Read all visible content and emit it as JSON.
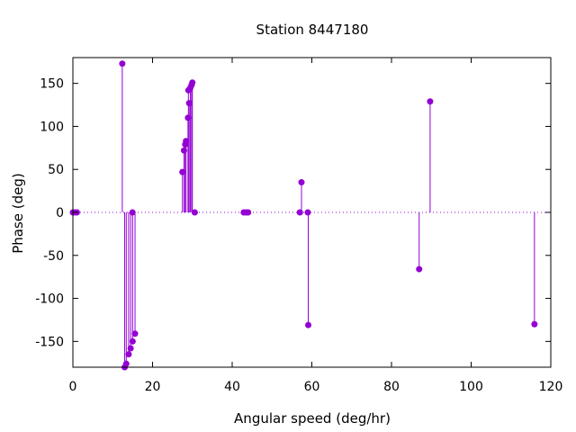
{
  "chart_data": {
    "type": "scatter",
    "style": "impulses-with-points",
    "title": "Station 8447180",
    "xlabel": "Angular speed (deg/hr)",
    "ylabel": "Phase (deg)",
    "xlim": [
      0,
      120
    ],
    "ylim": [
      -180,
      180
    ],
    "xticks": [
      0,
      20,
      40,
      60,
      80,
      100,
      120
    ],
    "yticks": [
      -150,
      -100,
      -50,
      0,
      50,
      100,
      150
    ],
    "xtick_labels": [
      "0",
      "20",
      "40",
      "60",
      "80",
      "100",
      "120"
    ],
    "ytick_labels": [
      "-150",
      "-100",
      "-50",
      "0",
      "50",
      "100",
      "150"
    ],
    "zero_line": "dotted",
    "grid": false,
    "color": "#9400d3",
    "series": [
      {
        "points": [
          {
            "x": 0.0,
            "y": 0
          },
          {
            "x": 0.5,
            "y": 0
          },
          {
            "x": 1.0,
            "y": 0
          },
          {
            "x": 12.4,
            "y": 173
          },
          {
            "x": 13.0,
            "y": -180
          },
          {
            "x": 13.4,
            "y": -176
          },
          {
            "x": 14.0,
            "y": -165
          },
          {
            "x": 14.5,
            "y": -158
          },
          {
            "x": 14.96,
            "y": 0
          },
          {
            "x": 15.0,
            "y": -150
          },
          {
            "x": 15.6,
            "y": -141
          },
          {
            "x": 27.5,
            "y": 47
          },
          {
            "x": 27.9,
            "y": 72
          },
          {
            "x": 28.2,
            "y": 79
          },
          {
            "x": 28.4,
            "y": 83
          },
          {
            "x": 28.9,
            "y": 110
          },
          {
            "x": 29.0,
            "y": 142
          },
          {
            "x": 29.2,
            "y": 127
          },
          {
            "x": 29.5,
            "y": 145
          },
          {
            "x": 29.8,
            "y": 148
          },
          {
            "x": 30.0,
            "y": 151
          },
          {
            "x": 30.6,
            "y": 0
          },
          {
            "x": 42.9,
            "y": 0
          },
          {
            "x": 43.5,
            "y": 0
          },
          {
            "x": 44.0,
            "y": 0
          },
          {
            "x": 57.0,
            "y": 0
          },
          {
            "x": 57.4,
            "y": 35
          },
          {
            "x": 58.98,
            "y": 0
          },
          {
            "x": 59.1,
            "y": -131
          },
          {
            "x": 86.95,
            "y": -66
          },
          {
            "x": 89.7,
            "y": 129
          },
          {
            "x": 115.9,
            "y": -130
          }
        ]
      }
    ]
  }
}
